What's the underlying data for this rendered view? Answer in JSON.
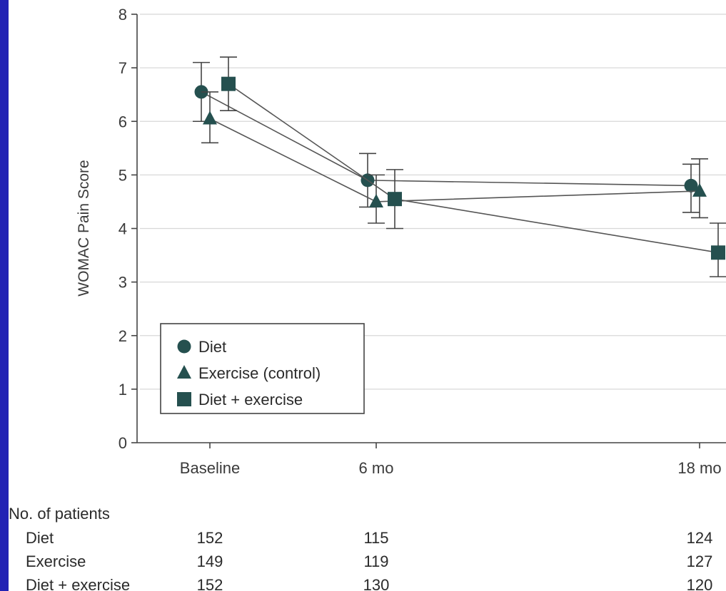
{
  "chart_data": {
    "type": "line",
    "ylabel": "WOMAC Pain Score",
    "xlabel": "",
    "categories": [
      "Baseline",
      "6 mo",
      "18 mo"
    ],
    "ylim": [
      0,
      8
    ],
    "yticks": [
      "0",
      "1",
      "2",
      "3",
      "4",
      "5",
      "6",
      "7",
      "8"
    ],
    "grid": true,
    "legend_position": "bottom-left",
    "error_bars": true,
    "series": [
      {
        "name": "Diet",
        "marker": "circle",
        "values": [
          6.55,
          4.9,
          4.8
        ],
        "ci_low": [
          6.0,
          4.4,
          4.3
        ],
        "ci_high": [
          7.1,
          5.4,
          5.2
        ]
      },
      {
        "name": "Exercise (control)",
        "marker": "triangle",
        "values": [
          6.05,
          4.5,
          4.7
        ],
        "ci_low": [
          5.6,
          4.1,
          4.2
        ],
        "ci_high": [
          6.55,
          5.0,
          5.3
        ]
      },
      {
        "name": "Diet + exercise",
        "marker": "square",
        "values": [
          6.7,
          4.55,
          3.55
        ],
        "ci_low": [
          6.2,
          4.0,
          3.1
        ],
        "ci_high": [
          7.2,
          5.1,
          4.1
        ]
      }
    ],
    "colors": {
      "marker": "#25504f",
      "line": "#555555",
      "grid": "#d8d8d8",
      "axis": "#444444"
    }
  },
  "patients_table": {
    "title": "No. of patients",
    "rows": [
      {
        "label": "Diet",
        "values": [
          "152",
          "115",
          "124"
        ]
      },
      {
        "label": "Exercise",
        "values": [
          "149",
          "119",
          "127"
        ]
      },
      {
        "label": "Diet + exercise",
        "values": [
          "152",
          "130",
          "120"
        ]
      }
    ]
  }
}
